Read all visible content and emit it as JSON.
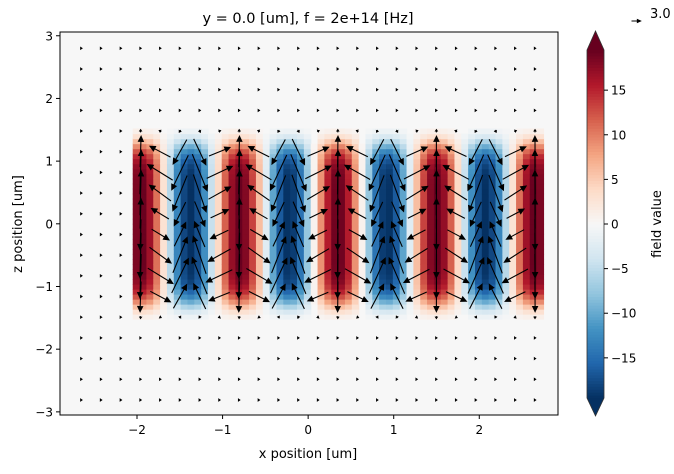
{
  "chart_data": {
    "type": "heatmap",
    "overlay": "quiver",
    "title": "y = 0.0 [um], f = 2e+14 [Hz]",
    "xlabel": "x position [um]",
    "ylabel": "z position [um]",
    "xlim": [
      -2.9,
      2.92
    ],
    "ylim": [
      -3.05,
      3.06
    ],
    "xticks": [
      -2,
      -1,
      0,
      1,
      2
    ],
    "xtick_labels": [
      "−2",
      "−1",
      "0",
      "1",
      "2"
    ],
    "yticks": [
      -3,
      -2,
      -1,
      0,
      1,
      2,
      3
    ],
    "ytick_labels": [
      "−3",
      "−2",
      "−1",
      "0",
      "1",
      "2",
      "3"
    ],
    "colormap": "RdBu_r",
    "colormap_stops": [
      "#053061",
      "#2166ac",
      "#4393c3",
      "#92c5de",
      "#d1e5f0",
      "#f7f7f7",
      "#fddbc7",
      "#f4a582",
      "#d6604d",
      "#b2182b",
      "#67001f"
    ],
    "field": {
      "amplitude": 19.5,
      "wavelength_um": 1.15,
      "positive_peaks_x": [
        -1.95,
        -0.8,
        0.35,
        1.5,
        2.65
      ],
      "negative_peaks_x": [
        -1.375,
        -0.225,
        0.925,
        2.075
      ],
      "x_extent": [
        -2.05,
        2.75
      ],
      "z_half_width": 1.3
    },
    "colorbar": {
      "label": "field value",
      "range": [
        -19.5,
        19.5
      ],
      "extend": "both",
      "ticks": [
        15,
        10,
        5,
        0,
        -5,
        -10,
        -15
      ],
      "tick_labels": [
        "15",
        "10",
        "5",
        "0",
        "−5",
        "−10",
        "−15"
      ]
    },
    "quiver_key": {
      "value": 3.0,
      "label": "3.0"
    },
    "grid": false
  }
}
